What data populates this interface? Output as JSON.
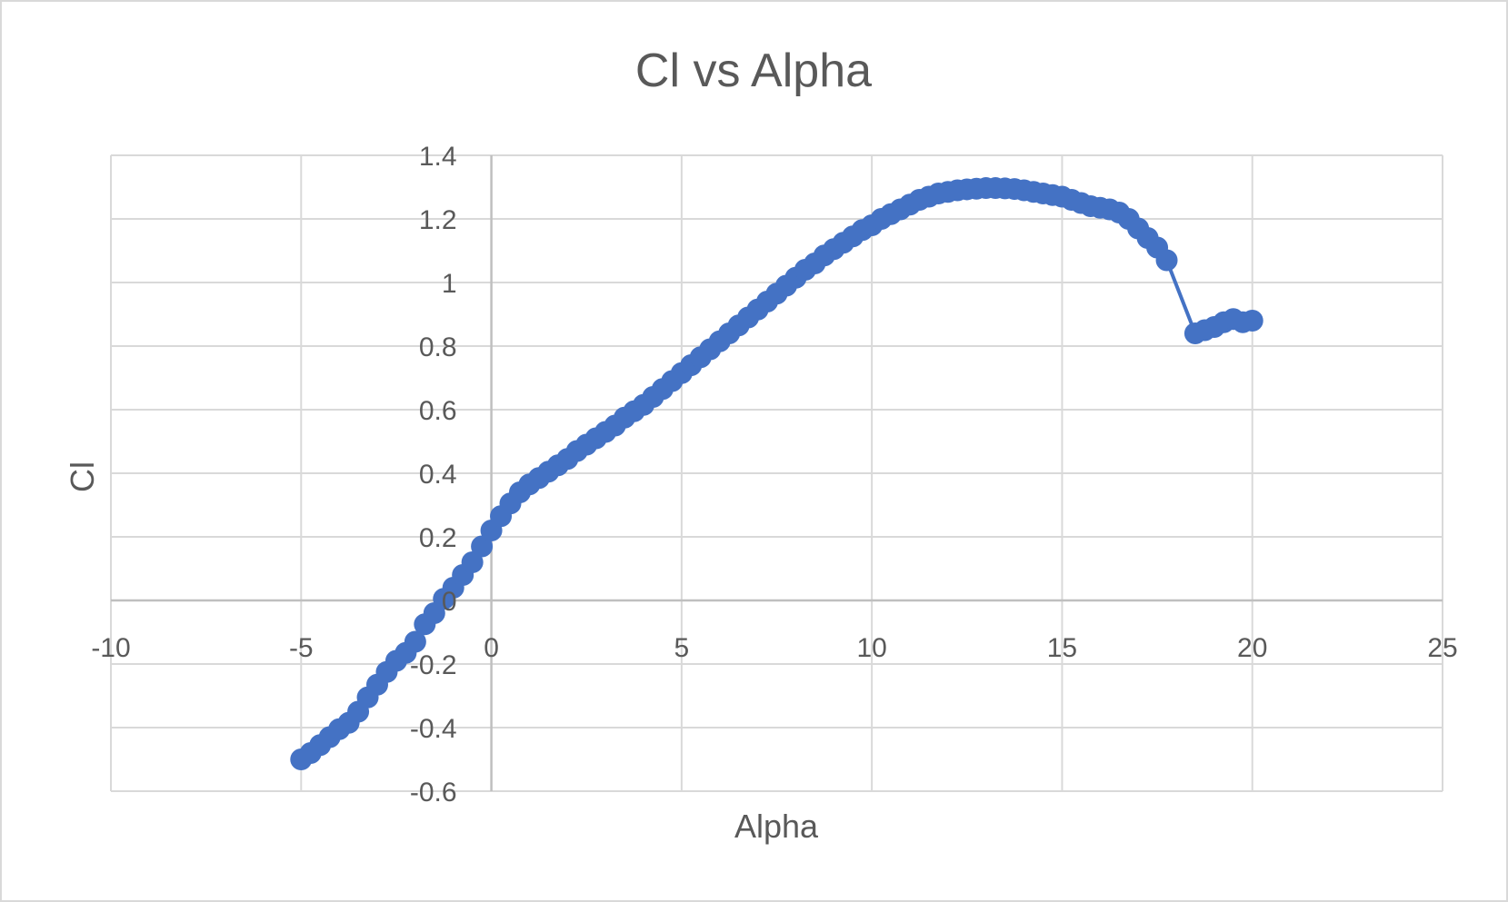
{
  "chart_data": {
    "type": "scatter",
    "title": "Cl vs Alpha",
    "xlabel": "Alpha",
    "ylabel": "Cl",
    "xlim": [
      -10,
      25
    ],
    "ylim": [
      -0.6,
      1.4
    ],
    "x_ticks": [
      "-10",
      "-5",
      "0",
      "5",
      "10",
      "15",
      "20",
      "25"
    ],
    "y_ticks": [
      "1.4",
      "1.2",
      "1",
      "0.8",
      "0.6",
      "0.4",
      "0.2",
      "0",
      "-0.2",
      "-0.4",
      "-0.6"
    ],
    "grid": true,
    "legend": "none",
    "series_color": "#4472c4",
    "grid_color": "#d9d9d9",
    "series": [
      {
        "x": [
          -5.0,
          -4.75,
          -4.5,
          -4.25,
          -4.0,
          -3.75,
          -3.5,
          -3.25,
          -3.0,
          -2.75,
          -2.5,
          -2.25,
          -2.0,
          -1.75,
          -1.5,
          -1.25,
          -1.0,
          -0.75,
          -0.5,
          -0.25,
          0.0,
          0.25,
          0.5,
          0.75,
          1.0,
          1.25,
          1.5,
          1.75,
          2.0,
          2.25,
          2.5,
          2.75,
          3.0,
          3.25,
          3.5,
          3.75,
          4.0,
          4.25,
          4.5,
          4.75,
          5.0,
          5.25,
          5.5,
          5.75,
          6.0,
          6.25,
          6.5,
          6.75,
          7.0,
          7.25,
          7.5,
          7.75,
          8.0,
          8.25,
          8.5,
          8.75,
          9.0,
          9.25,
          9.5,
          9.75,
          10.0,
          10.25,
          10.5,
          10.75,
          11.0,
          11.25,
          11.5,
          11.75,
          12.0,
          12.25,
          12.5,
          12.75,
          13.0,
          13.25,
          13.5,
          13.75,
          14.0,
          14.25,
          14.5,
          14.75,
          15.0,
          15.25,
          15.5,
          15.75,
          16.0,
          16.25,
          16.5,
          16.75,
          17.0,
          17.25,
          17.5,
          17.75,
          18.5,
          18.75,
          19.0,
          19.25,
          19.5,
          19.75,
          20.0
        ],
        "y": [
          -0.5,
          -0.48,
          -0.455,
          -0.43,
          -0.405,
          -0.385,
          -0.35,
          -0.305,
          -0.265,
          -0.225,
          -0.19,
          -0.165,
          -0.13,
          -0.075,
          -0.04,
          0.005,
          0.04,
          0.08,
          0.12,
          0.17,
          0.22,
          0.265,
          0.305,
          0.34,
          0.365,
          0.385,
          0.405,
          0.425,
          0.445,
          0.47,
          0.49,
          0.51,
          0.53,
          0.55,
          0.575,
          0.595,
          0.615,
          0.64,
          0.665,
          0.69,
          0.715,
          0.74,
          0.765,
          0.79,
          0.815,
          0.84,
          0.865,
          0.89,
          0.915,
          0.94,
          0.965,
          0.99,
          1.015,
          1.04,
          1.06,
          1.085,
          1.105,
          1.125,
          1.145,
          1.165,
          1.18,
          1.2,
          1.215,
          1.23,
          1.245,
          1.26,
          1.27,
          1.28,
          1.285,
          1.29,
          1.293,
          1.295,
          1.297,
          1.297,
          1.296,
          1.294,
          1.29,
          1.285,
          1.28,
          1.275,
          1.27,
          1.26,
          1.25,
          1.24,
          1.235,
          1.23,
          1.22,
          1.2,
          1.17,
          1.14,
          1.11,
          1.07,
          0.84,
          0.85,
          0.86,
          0.875,
          0.885,
          0.875,
          0.88
        ]
      }
    ]
  }
}
